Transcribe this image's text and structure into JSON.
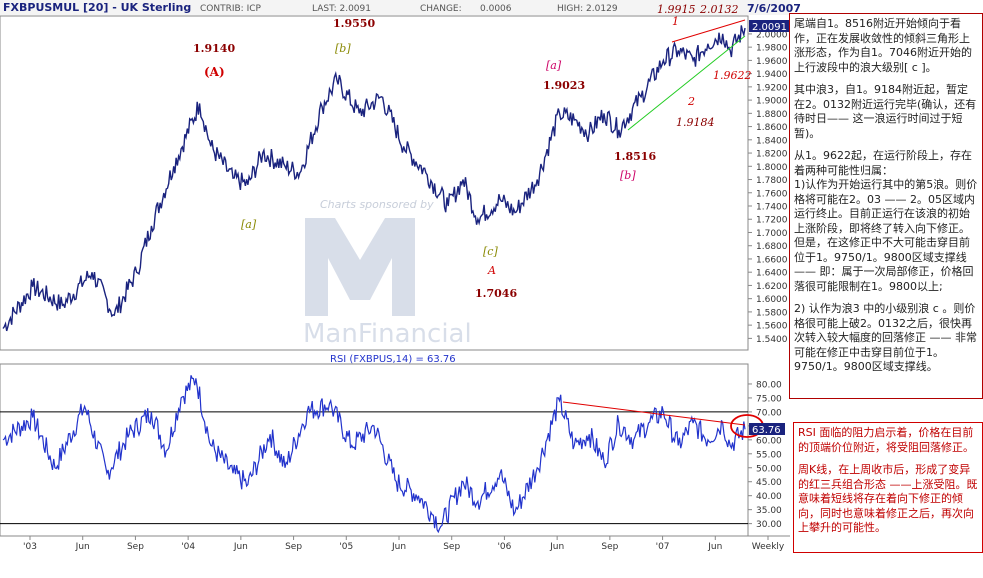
{
  "header": {
    "symbol": "FXBPUSMUL [20] - UK Sterling",
    "contrib": "CONTRIB: ICP",
    "last": "LAST: 2.0091",
    "change_label": "CHANGE:",
    "change_value": "0.0006",
    "high": "HIGH: 2.0129",
    "date": "7/6/2007"
  },
  "watermark": {
    "sponsor": "Charts sponsored by",
    "brand": "ManFinancial"
  },
  "chart_data": [
    {
      "type": "line",
      "title": "",
      "frequency": "Weekly",
      "x_ticks": [
        "'03",
        "Jun",
        "Sep",
        "'04",
        "Jun",
        "Sep",
        "'05",
        "Jun",
        "Sep",
        "'06",
        "Jun",
        "Sep",
        "'07",
        "Jun",
        "Weekly"
      ],
      "y_ticks": [
        "2.0000",
        "1.9800",
        "1.9600",
        "1.9400",
        "1.9200",
        "1.9000",
        "1.8800",
        "1.8600",
        "1.8400",
        "1.8200",
        "1.8000",
        "1.7800",
        "1.7600",
        "1.7400",
        "1.7200",
        "1.7000",
        "1.6800",
        "1.6600",
        "1.6400",
        "1.6200",
        "1.6000",
        "1.5800",
        "1.5600",
        "1.5400"
      ],
      "ylim": [
        1.53,
        2.018
      ],
      "last_value_label": "2.0091",
      "key_points": [
        {
          "x": 0,
          "y": 1.555
        },
        {
          "x": 8,
          "y": 1.618
        },
        {
          "x": 16,
          "y": 1.59
        },
        {
          "x": 24,
          "y": 1.64
        },
        {
          "x": 30,
          "y": 1.575
        },
        {
          "x": 36,
          "y": 1.64
        },
        {
          "x": 40,
          "y": 1.71
        },
        {
          "x": 46,
          "y": 1.8
        },
        {
          "x": 53,
          "y": 1.895
        },
        {
          "x": 56,
          "y": 1.83
        },
        {
          "x": 62,
          "y": 1.782
        },
        {
          "x": 66,
          "y": 1.772
        },
        {
          "x": 70,
          "y": 1.82
        },
        {
          "x": 76,
          "y": 1.8
        },
        {
          "x": 80,
          "y": 1.79
        },
        {
          "x": 86,
          "y": 1.89
        },
        {
          "x": 90,
          "y": 1.93
        },
        {
          "x": 96,
          "y": 1.88
        },
        {
          "x": 102,
          "y": 1.905
        },
        {
          "x": 108,
          "y": 1.83
        },
        {
          "x": 114,
          "y": 1.79
        },
        {
          "x": 120,
          "y": 1.74
        },
        {
          "x": 124,
          "y": 1.78
        },
        {
          "x": 128,
          "y": 1.72
        },
        {
          "x": 134,
          "y": 1.75
        },
        {
          "x": 138,
          "y": 1.73
        },
        {
          "x": 144,
          "y": 1.78
        },
        {
          "x": 150,
          "y": 1.88
        },
        {
          "x": 154,
          "y": 1.87
        },
        {
          "x": 158,
          "y": 1.85
        },
        {
          "x": 162,
          "y": 1.88
        },
        {
          "x": 166,
          "y": 1.855
        },
        {
          "x": 172,
          "y": 1.905
        },
        {
          "x": 178,
          "y": 1.96
        },
        {
          "x": 182,
          "y": 1.975
        },
        {
          "x": 186,
          "y": 1.96
        },
        {
          "x": 190,
          "y": 1.985
        },
        {
          "x": 194,
          "y": 2.0
        },
        {
          "x": 196,
          "y": 1.975
        },
        {
          "x": 200,
          "y": 2.009
        }
      ],
      "annotations": [
        {
          "label": "1.9140",
          "color": "#8b0000"
        },
        {
          "label": "(A)",
          "color": "#d00000"
        },
        {
          "label": "[a]",
          "color": "#888800"
        },
        {
          "label": "1.9550",
          "color": "#8b0000"
        },
        {
          "label": "[b]",
          "color": "#888800"
        },
        {
          "label": "[c]",
          "color": "#888800"
        },
        {
          "label": "A",
          "color": "#d00000"
        },
        {
          "label": "1.7046",
          "color": "#8b0000"
        },
        {
          "label": "[a]",
          "color": "#cc0066"
        },
        {
          "label": "1.9023",
          "color": "#8b0000"
        },
        {
          "label": "1.8516",
          "color": "#8b0000"
        },
        {
          "label": "[b]",
          "color": "#cc0066"
        },
        {
          "label": "1.9915",
          "color": "#8b0000"
        },
        {
          "label": "1",
          "color": "#d00000"
        },
        {
          "label": "2.0132",
          "color": "#8b0000"
        },
        {
          "label": "1.9622",
          "color": "#d00000"
        },
        {
          "label": "2",
          "color": "#d00000"
        },
        {
          "label": "1.9184",
          "color": "#8b0000"
        }
      ]
    },
    {
      "type": "line",
      "title": "RSI (FXBPUS,14) = 63.76",
      "y_ticks": [
        "80.00",
        "75.00",
        "70.00",
        "65.00",
        "60.00",
        "55.00",
        "50.00",
        "45.00",
        "40.00",
        "35.00",
        "30.00"
      ],
      "ylim": [
        27,
        85
      ],
      "reference_lines": [
        70,
        30
      ],
      "last_value_label": "63.76",
      "key_points": [
        {
          "x": 0,
          "y": 60
        },
        {
          "x": 8,
          "y": 68
        },
        {
          "x": 14,
          "y": 50
        },
        {
          "x": 22,
          "y": 72
        },
        {
          "x": 28,
          "y": 48
        },
        {
          "x": 34,
          "y": 62
        },
        {
          "x": 40,
          "y": 70
        },
        {
          "x": 44,
          "y": 56
        },
        {
          "x": 48,
          "y": 75
        },
        {
          "x": 52,
          "y": 82
        },
        {
          "x": 56,
          "y": 58
        },
        {
          "x": 62,
          "y": 48
        },
        {
          "x": 66,
          "y": 44
        },
        {
          "x": 72,
          "y": 62
        },
        {
          "x": 76,
          "y": 50
        },
        {
          "x": 82,
          "y": 70
        },
        {
          "x": 88,
          "y": 73
        },
        {
          "x": 94,
          "y": 58
        },
        {
          "x": 100,
          "y": 65
        },
        {
          "x": 106,
          "y": 45
        },
        {
          "x": 112,
          "y": 40
        },
        {
          "x": 116,
          "y": 33
        },
        {
          "x": 118,
          "y": 29
        },
        {
          "x": 124,
          "y": 45
        },
        {
          "x": 128,
          "y": 38
        },
        {
          "x": 134,
          "y": 48
        },
        {
          "x": 138,
          "y": 34
        },
        {
          "x": 144,
          "y": 50
        },
        {
          "x": 150,
          "y": 74
        },
        {
          "x": 154,
          "y": 58
        },
        {
          "x": 158,
          "y": 62
        },
        {
          "x": 162,
          "y": 52
        },
        {
          "x": 166,
          "y": 66
        },
        {
          "x": 170,
          "y": 60
        },
        {
          "x": 174,
          "y": 66
        },
        {
          "x": 178,
          "y": 70
        },
        {
          "x": 182,
          "y": 58
        },
        {
          "x": 186,
          "y": 66
        },
        {
          "x": 190,
          "y": 60
        },
        {
          "x": 194,
          "y": 66
        },
        {
          "x": 196,
          "y": 58
        },
        {
          "x": 200,
          "y": 63.76
        }
      ]
    }
  ],
  "notes": {
    "note1": [
      "尾端自1。8516附近开始倾向于看作，正在发展收敛性的倾斜三角形上涨形态，作为自1。7046附近开始的上行波段中的浪大级别[ c ]。",
      "其中浪3，自1。9184附近起，暂定在2。0132附近运行完毕(确认，还有待时日—— 这一浪运行时间过于短暂)。",
      "从1。9622起，在运行阶段上，存在着两种可能性归属：\n1)认作为开始运行其中的第5浪。则价格将可能在2。03 —— 2。05区域内运行终止。目前正运行在该浪的初始上涨阶段，即将终了转入向下修正。但是，在这修正中不大可能击穿目前位于1。9750/1。9800区域支撑线 —— 即：属于一次局部修正，价格回落很可能限制在1。9800以上;",
      "2) 认作为浪3 中的小级别浪 c 。则价格很可能上破2。0132之后，很快再次转入较大幅度的回落修正 —— 非常可能在修正中击穿目前位于1。9750/1。9800区域支撑线。"
    ],
    "note2": [
      "RSI 面临的阻力启示着，价格在目前的顶端价位附近，将受阻回落修正。",
      "周K线，在上周收市后，形成了变异的红三兵组合形态 ——上涨受阻。既意味着短线将存在着向下修正的倾向，同时也意味着修正之后，再次向上攀升的可能性。"
    ]
  },
  "colors": {
    "price_line": "#1a237e",
    "rsi_line": "#2233cc",
    "trend_red": "#e00000",
    "trend_green": "#22cc22",
    "watermark": "#aab6cc",
    "last_box": "#1a237e"
  }
}
